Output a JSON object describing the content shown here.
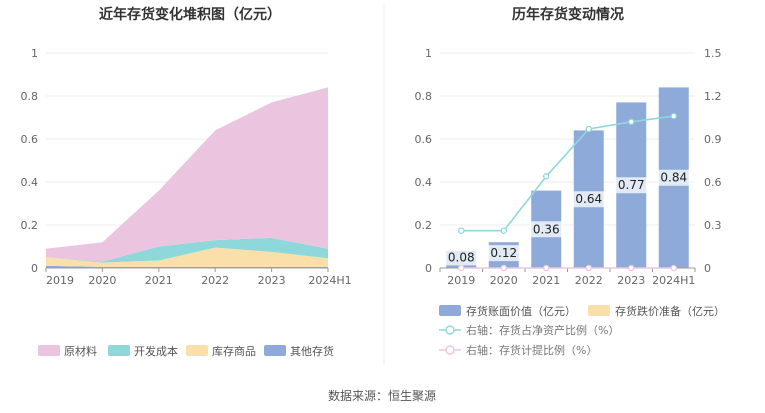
{
  "source_text": "数据来源：恒生聚源",
  "chart_data": [
    {
      "type": "area",
      "stacked": true,
      "title": "近年存货变化堆积图（亿元）",
      "categories": [
        "2019",
        "2020",
        "2021",
        "2022",
        "2023",
        "2024H1"
      ],
      "ylim": [
        0,
        1
      ],
      "yticks": [
        "0",
        "0.2",
        "0.4",
        "0.6",
        "0.8",
        "1"
      ],
      "grid": true,
      "legend_position": "bottom",
      "series": [
        {
          "name": "其他存货",
          "color": "#8DAAD8",
          "values": [
            0.01,
            0.005,
            0.005,
            0.005,
            0.005,
            0.005
          ]
        },
        {
          "name": "库存商品",
          "color": "#FBDFA8",
          "values": [
            0.04,
            0.02,
            0.03,
            0.09,
            0.07,
            0.04
          ]
        },
        {
          "name": "开发成本",
          "color": "#8ED8DC",
          "values": [
            0.0,
            0.005,
            0.065,
            0.035,
            0.065,
            0.045
          ]
        },
        {
          "name": "原材料",
          "color": "#EBC5E0",
          "values": [
            0.04,
            0.09,
            0.26,
            0.51,
            0.63,
            0.75
          ]
        }
      ],
      "legend_order": [
        "原材料",
        "开发成本",
        "库存商品",
        "其他存货"
      ]
    },
    {
      "type": "bar",
      "title": "历年存货变动情况",
      "categories": [
        "2019",
        "2020",
        "2021",
        "2022",
        "2023",
        "2024H1"
      ],
      "ylim": [
        0,
        1
      ],
      "yticks": [
        "0",
        "0.2",
        "0.4",
        "0.6",
        "0.8",
        "1"
      ],
      "y2lim": [
        0,
        1.5
      ],
      "y2ticks": [
        "0",
        "0.3",
        "0.6",
        "0.9",
        "1.2",
        "1.5"
      ],
      "grid": true,
      "legend_position": "bottom",
      "bars": [
        {
          "name": "存货账面价值（亿元）",
          "color": "#8DAAD8",
          "values": [
            0.08,
            0.12,
            0.36,
            0.64,
            0.77,
            0.84
          ],
          "labels": [
            "0.08",
            "0.12",
            "0.36",
            "0.64",
            "0.77",
            "0.84"
          ]
        },
        {
          "name": "存货跌价准备（亿元）",
          "color": "#FBDFA8",
          "values": [
            0,
            0,
            0,
            0,
            0,
            0
          ]
        }
      ],
      "lines": [
        {
          "name": "右轴：存货占净资产比例（%）",
          "color": "#8ED8DC",
          "axis": "right",
          "values": [
            0.26,
            0.26,
            0.64,
            0.97,
            1.02,
            1.06
          ]
        },
        {
          "name": "右轴：存货计提比例（%）",
          "color": "#EBC5E0",
          "axis": "right",
          "values": [
            0,
            0,
            0,
            0,
            0,
            0
          ]
        }
      ]
    }
  ]
}
